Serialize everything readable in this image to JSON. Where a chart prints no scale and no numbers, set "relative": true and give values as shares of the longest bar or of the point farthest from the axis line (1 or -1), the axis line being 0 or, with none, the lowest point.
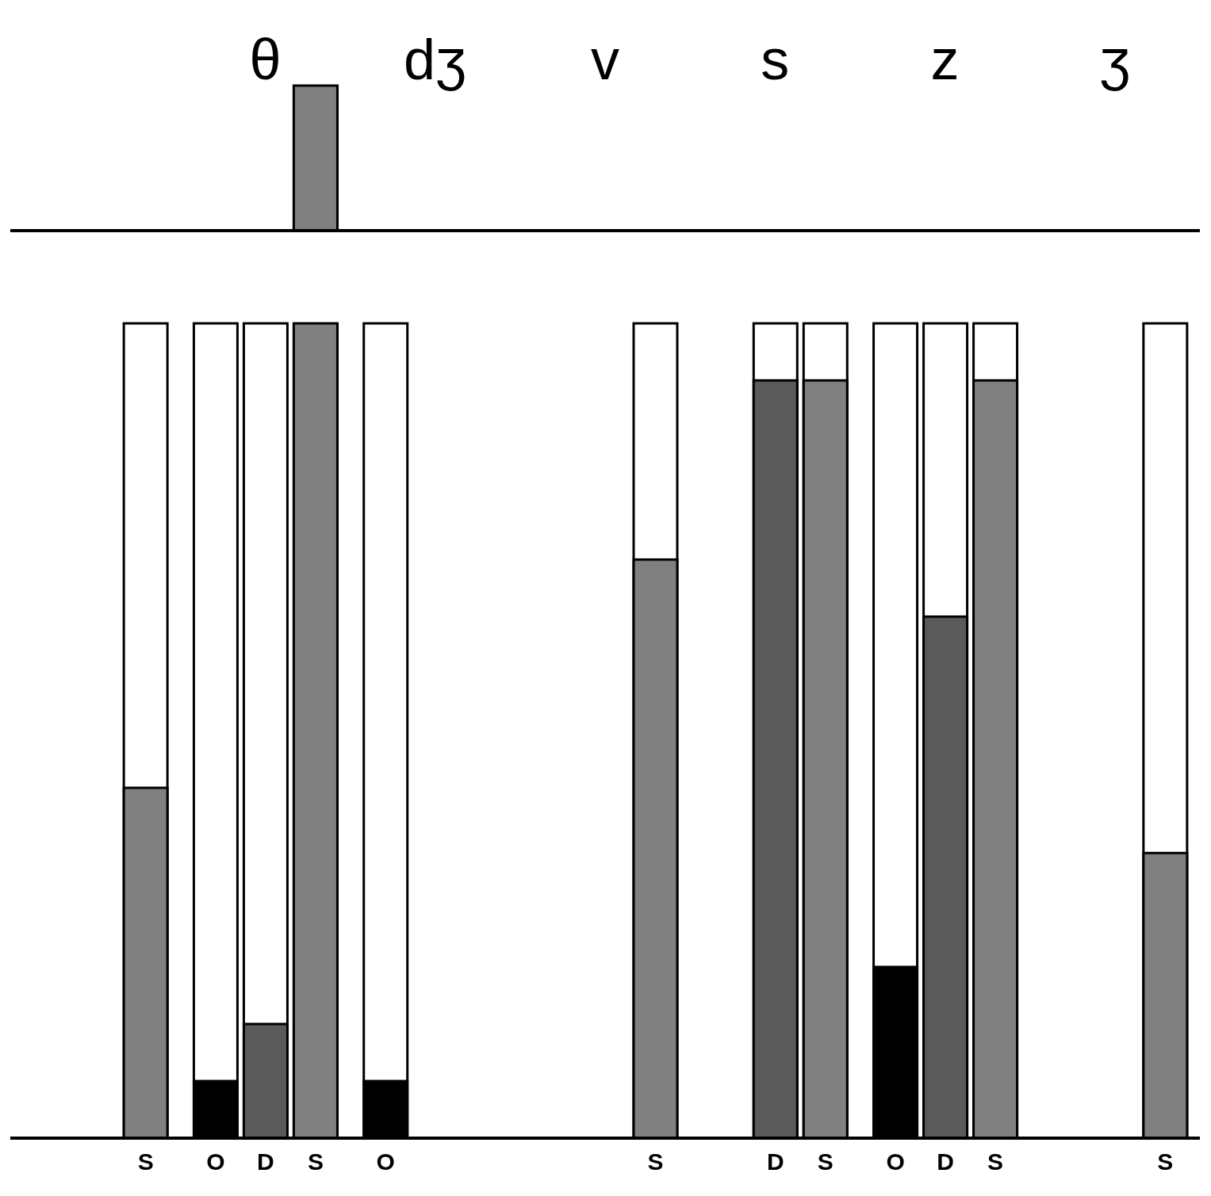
{
  "chart_data": [
    {
      "type": "bar",
      "relative": true,
      "categories": [
        null,
        "θ",
        "dʒ",
        "v",
        "s",
        "z",
        "ʒ"
      ],
      "series": [
        {
          "color": "#000000",
          "values": [
            null,
            0,
            0,
            0,
            0,
            0,
            0
          ]
        },
        {
          "color": "#5a5a5a",
          "values": [
            null,
            0,
            0,
            0,
            0,
            0,
            0
          ]
        },
        {
          "color": "#808080",
          "values": [
            0,
            1,
            0,
            0,
            0,
            0,
            0
          ]
        }
      ]
    },
    {
      "type": "bar",
      "relative": true,
      "categories": [
        null,
        null,
        null,
        null,
        null,
        null,
        null
      ],
      "series": [
        {
          "name": "O",
          "color": "#000000",
          "values": [
            null,
            0.07,
            0.07,
            0,
            0,
            0.21,
            0
          ]
        },
        {
          "name": "D",
          "color": "#5a5a5a",
          "values": [
            null,
            0.14,
            0,
            0,
            0.93,
            0.64,
            0
          ]
        },
        {
          "name": "S",
          "color": "#808080",
          "values": [
            0.43,
            1,
            0,
            0.71,
            0.93,
            0.93,
            0.35
          ]
        }
      ]
    }
  ]
}
